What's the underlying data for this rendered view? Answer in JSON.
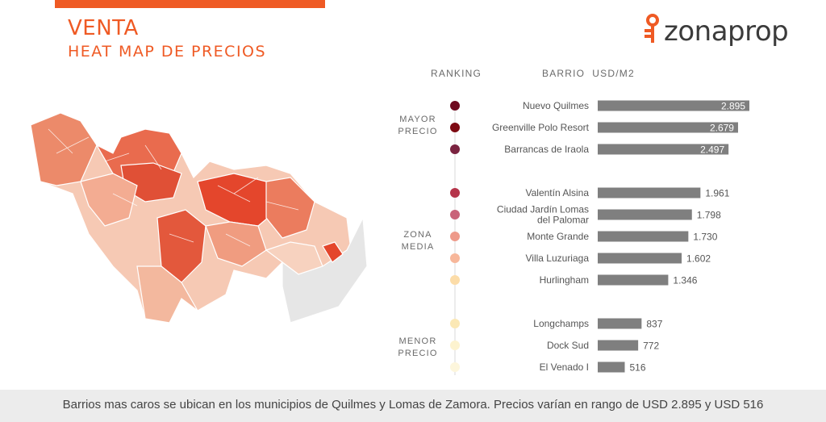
{
  "header": {
    "title": "VENTA",
    "subtitle": "HEAT MAP DE PRECIOS",
    "brand": "zonaprop"
  },
  "columns": {
    "ranking": "RANKING",
    "barrio": "BARRIO",
    "unit": "USD/M2"
  },
  "groups": {
    "mayor": [
      "MAYOR",
      "PRECIO"
    ],
    "media": [
      "ZONA",
      "MEDIA"
    ],
    "menor": [
      "MENOR",
      "PRECIO"
    ]
  },
  "colors": {
    "accent": "#ef5a24",
    "bar": "#7f7f7f",
    "bar_label_inside": "#ffffff"
  },
  "chart_data": {
    "type": "bar",
    "orientation": "horizontal",
    "xlim": [
      0,
      2895
    ],
    "categories": [
      "Nuevo Quilmes",
      "Greenville Polo Resort",
      "Barrancas de Iraola",
      "Valentín Alsina",
      "Ciudad Jardín Lomas del Palomar",
      "Monte Grande",
      "Villa Luzuriaga",
      "Hurlingham",
      "Longchamps",
      "Dock Sud",
      "El Venado I"
    ],
    "labels": [
      [
        "Nuevo Quilmes"
      ],
      [
        "Greenville Polo Resort"
      ],
      [
        "Barrancas de Iraola"
      ],
      [
        "Valentín Alsina"
      ],
      [
        "Ciudad Jardín Lomas",
        "del Palomar"
      ],
      [
        "Monte Grande"
      ],
      [
        "Villa Luzuriaga"
      ],
      [
        "Hurlingham"
      ],
      [
        "Longchamps"
      ],
      [
        "Dock Sud"
      ],
      [
        "El Venado I"
      ]
    ],
    "values": [
      2895,
      2679,
      2497,
      1961,
      1798,
      1730,
      1602,
      1346,
      837,
      772,
      516
    ],
    "value_labels": [
      "2.895",
      "2.679",
      "2.497",
      "1.961",
      "1.798",
      "1.730",
      "1.602",
      "1.346",
      "837",
      "772",
      "516"
    ],
    "label_inside": [
      true,
      true,
      true,
      false,
      false,
      false,
      false,
      false,
      false,
      false,
      false
    ],
    "groups": [
      "mayor",
      "mayor",
      "mayor",
      "media",
      "media",
      "media",
      "media",
      "media",
      "menor",
      "menor",
      "menor"
    ],
    "ranking_dots": [
      "#6e0a1e",
      "#7d0a12",
      "#7a2340",
      "#b5344a",
      "#c9647a",
      "#ee9a8a",
      "#f7b79a",
      "#fcdca8",
      "#fbe8b5",
      "#fdf3cf",
      "#fdf6dc"
    ]
  },
  "footer": {
    "text": "Barrios mas caros se ubican en los municipios de Quilmes y Lomas de Zamora. Precios varían en rango de USD 2.895 y USD 516"
  }
}
